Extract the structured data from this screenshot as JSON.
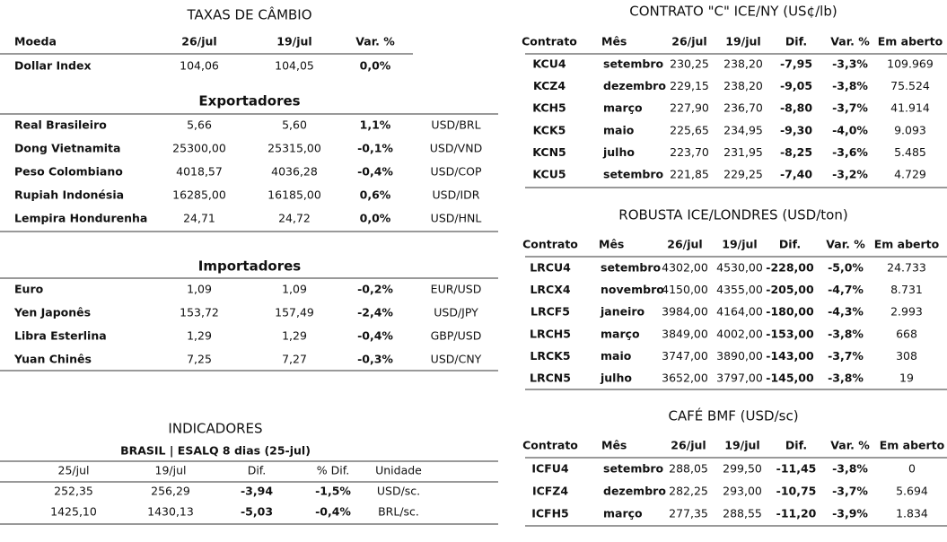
{
  "left": {
    "taxas": {
      "title": "TAXAS DE CÂMBIO",
      "header": [
        "Moeda",
        "26/jul",
        "19/jul",
        "Var. %"
      ],
      "rows": [
        [
          "Dollar Index",
          "104,06",
          "104,05",
          "0,0%"
        ]
      ],
      "var_colors": [
        "#1e9e2e"
      ]
    },
    "exportadores": {
      "title": "Exportadores",
      "rows": [
        [
          "Real Brasileiro",
          "5,66",
          "5,60",
          "1,1%",
          "USD/BRL"
        ],
        [
          "Dong Vietnamita",
          "25300,00",
          "25315,00",
          "-0,1%",
          "USD/VND"
        ],
        [
          "Peso Colombiano",
          "4018,57",
          "4036,28",
          "-0,4%",
          "USD/COP"
        ],
        [
          "Rupiah Indonésia",
          "16285,00",
          "16185,00",
          "0,6%",
          "USD/IDR"
        ],
        [
          "Lempira Hondurenha",
          "24,71",
          "24,72",
          "0,0%",
          "USD/HNL"
        ]
      ],
      "var_colors": [
        "#1e9e2e",
        "#e01b1b",
        "#e01b1b",
        "#1e9e2e",
        "#e01b1b"
      ]
    },
    "importadores": {
      "title": "Importadores",
      "rows": [
        [
          "Euro",
          "1,09",
          "1,09",
          "-0,2%",
          "EUR/USD"
        ],
        [
          "Yen Japonês",
          "153,72",
          "157,49",
          "-2,4%",
          "USD/JPY"
        ],
        [
          "Libra Esterlina",
          "1,29",
          "1,29",
          "-0,4%",
          "GBP/USD"
        ],
        [
          "Yuan Chinês",
          "7,25",
          "7,27",
          "-0,3%",
          "USD/CNY"
        ]
      ],
      "var_colors": [
        "#e01b1b",
        "#e01b1b",
        "#e01b1b",
        "#e01b1b"
      ]
    },
    "indicadores": {
      "title": "INDICADORES",
      "subtitle": "BRASIL | ESALQ 8 dias (25-jul)",
      "header": [
        "25/jul",
        "19/jul",
        "Dif.",
        "% Dif.",
        "Unidade"
      ],
      "rows": [
        [
          "252,35",
          "256,29",
          "-3,94",
          "-1,5%",
          "USD/sc."
        ],
        [
          "1425,10",
          "1430,13",
          "-5,03",
          "-0,4%",
          "BRL/sc."
        ]
      ]
    }
  },
  "right": {
    "contrato": {
      "title": "CONTRATO \"C\" ICE/NY (US¢/lb)",
      "header": [
        "Contrato",
        "Mês",
        "26/jul",
        "19/jul",
        "Dif.",
        "Var. %",
        "Em aberto"
      ],
      "rows": [
        [
          "KCU4",
          "setembro",
          "230,25",
          "238,20",
          "-7,95",
          "-3,3%",
          "109.969"
        ],
        [
          "KCZ4",
          "dezembro",
          "229,15",
          "238,20",
          "-9,05",
          "-3,8%",
          "75.524"
        ],
        [
          "KCH5",
          "março",
          "227,90",
          "236,70",
          "-8,80",
          "-3,7%",
          "41.914"
        ],
        [
          "KCK5",
          "maio",
          "225,65",
          "234,95",
          "-9,30",
          "-4,0%",
          "9.093"
        ],
        [
          "KCN5",
          "julho",
          "223,70",
          "231,95",
          "-8,25",
          "-3,6%",
          "5.485"
        ],
        [
          "KCU5",
          "setembro",
          "221,85",
          "229,25",
          "-7,40",
          "-3,2%",
          "4.729"
        ]
      ]
    },
    "robusta": {
      "title": "ROBUSTA ICE/LONDRES (USD/ton)",
      "header": [
        "Contrato",
        "Mês",
        "26/jul",
        "19/jul",
        "Dif.",
        "Var. %",
        "Em aberto"
      ],
      "rows": [
        [
          "LRCU4",
          "setembro",
          "4302,00",
          "4530,00",
          "-228,00",
          "-5,0%",
          "24.733"
        ],
        [
          "LRCX4",
          "novembro",
          "4150,00",
          "4355,00",
          "-205,00",
          "-4,7%",
          "8.731"
        ],
        [
          "LRCF5",
          "janeiro",
          "3984,00",
          "4164,00",
          "-180,00",
          "-4,3%",
          "2.993"
        ],
        [
          "LRCH5",
          "março",
          "3849,00",
          "4002,00",
          "-153,00",
          "-3,8%",
          "668"
        ],
        [
          "LRCK5",
          "maio",
          "3747,00",
          "3890,00",
          "-143,00",
          "-3,7%",
          "308"
        ],
        [
          "LRCN5",
          "julho",
          "3652,00",
          "3797,00",
          "-145,00",
          "-3,8%",
          "19"
        ]
      ]
    },
    "cafe": {
      "title": "CAFÉ BMF (USD/sc)",
      "header": [
        "Contrato",
        "Mês",
        "26/jul",
        "19/jul",
        "Dif.",
        "Var. %",
        "Em aberto"
      ],
      "rows": [
        [
          "ICFU4",
          "setembro",
          "288,05",
          "299,50",
          "-11,45",
          "-3,8%",
          "0"
        ],
        [
          "ICFZ4",
          "dezembro",
          "282,25",
          "293,00",
          "-10,75",
          "-3,7%",
          "5.694"
        ],
        [
          "ICFH5",
          "março",
          "277,35",
          "288,55",
          "-11,20",
          "-3,9%",
          "1.834"
        ]
      ]
    }
  }
}
